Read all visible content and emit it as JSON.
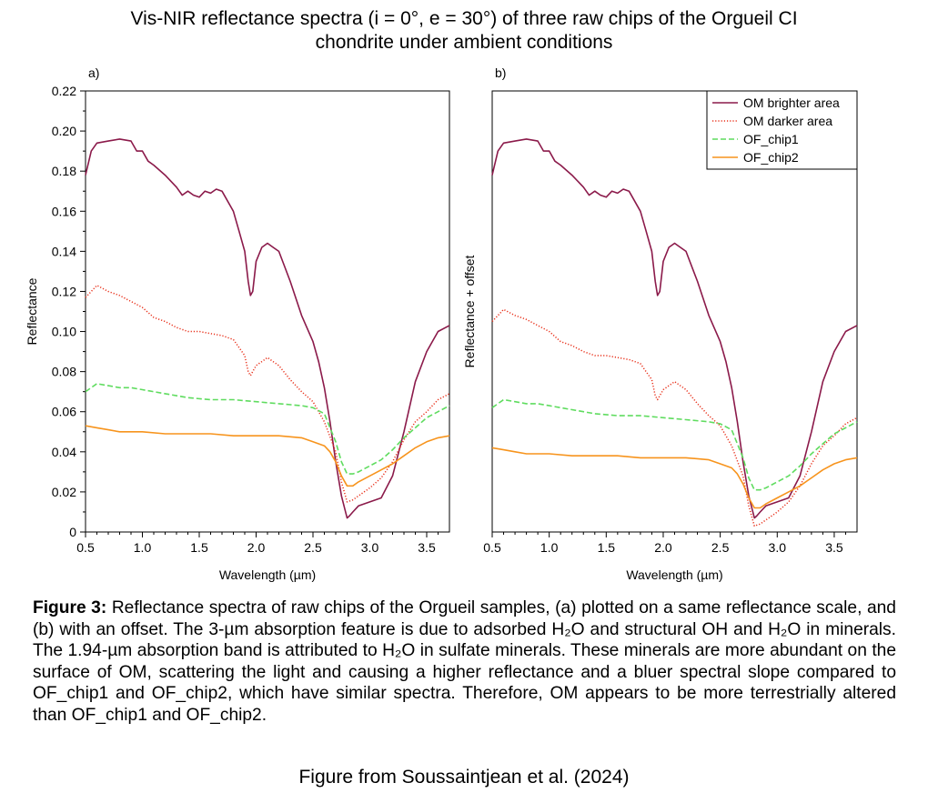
{
  "figure": {
    "title_line1": "Vis-NIR reflectance spectra (i = 0°, e = 30°) of three raw chips of the Orgueil CI",
    "title_line2": "chondrite under ambient conditions",
    "caption_label": "Figure 3:",
    "caption_text": "Reflectance spectra of raw chips of the Orgueil samples, (a) plotted on a same reflectance scale, and (b) with an offset. The 3-µm absorption feature is due to adsorbed H₂O and structural OH and H₂O in minerals. The 1.94-µm absorption band is attributed to H₂O in sulfate minerals. These minerals are more abundant on the surface of OM, scattering the light and causing a higher reflectance and a bluer spectral slope compared to OF_chip1 and OF_chip2, which have similar spectra. Therefore, OM appears to be more terrestrially altered than OF_chip1 and OF_chip2.",
    "credit": "Figure from Soussaintjean et al. (2024)"
  },
  "colors": {
    "om_bright": "#8b1a4a",
    "om_dark": "#e8301a",
    "of_chip1": "#5fdc5f",
    "of_chip2": "#f7941d"
  },
  "chart_data": [
    {
      "type": "line",
      "panel_label": "a)",
      "xlabel": "Wavelength (µm)",
      "ylabel": "Reflectance",
      "xlim": [
        0.5,
        3.7
      ],
      "ylim": [
        0,
        0.22
      ],
      "xticks": [
        0.5,
        1.0,
        1.5,
        2.0,
        2.5,
        3.0,
        3.5
      ],
      "xtick_labels": [
        "0.5",
        "1.0",
        "1.5",
        "2.0",
        "2.5",
        "3.0",
        "3.5"
      ],
      "yticks": [
        0,
        0.02,
        0.04,
        0.06,
        0.08,
        0.1,
        0.12,
        0.14,
        0.16,
        0.18,
        0.2,
        0.22
      ],
      "ytick_labels": [
        "0",
        "0.02",
        "0.04",
        "0.06",
        "0.08",
        "0.10",
        "0.12",
        "0.14",
        "0.16",
        "0.18",
        "0.20",
        "0.22"
      ],
      "legend": false,
      "series": [
        {
          "name": "OM brighter area",
          "style": "solid",
          "color_key": "om_bright",
          "x": [
            0.5,
            0.55,
            0.6,
            0.7,
            0.8,
            0.9,
            0.95,
            1.0,
            1.05,
            1.1,
            1.2,
            1.3,
            1.35,
            1.4,
            1.45,
            1.5,
            1.55,
            1.6,
            1.65,
            1.7,
            1.8,
            1.85,
            1.9,
            1.93,
            1.95,
            1.97,
            2.0,
            2.05,
            2.1,
            2.15,
            2.2,
            2.3,
            2.4,
            2.5,
            2.55,
            2.6,
            2.65,
            2.7,
            2.75,
            2.8,
            2.82,
            2.85,
            2.9,
            3.0,
            3.1,
            3.2,
            3.3,
            3.4,
            3.5,
            3.6,
            3.7
          ],
          "y": [
            0.178,
            0.19,
            0.194,
            0.195,
            0.196,
            0.195,
            0.19,
            0.19,
            0.185,
            0.183,
            0.178,
            0.172,
            0.168,
            0.17,
            0.168,
            0.167,
            0.17,
            0.169,
            0.171,
            0.17,
            0.16,
            0.15,
            0.14,
            0.125,
            0.118,
            0.12,
            0.135,
            0.142,
            0.144,
            0.142,
            0.14,
            0.125,
            0.108,
            0.095,
            0.085,
            0.072,
            0.055,
            0.035,
            0.018,
            0.007,
            0.008,
            0.01,
            0.013,
            0.015,
            0.017,
            0.028,
            0.05,
            0.075,
            0.09,
            0.1,
            0.103
          ]
        },
        {
          "name": "OM darker area",
          "style": "dotted",
          "color_key": "om_dark",
          "x": [
            0.5,
            0.55,
            0.6,
            0.7,
            0.8,
            0.9,
            1.0,
            1.1,
            1.2,
            1.3,
            1.4,
            1.5,
            1.6,
            1.7,
            1.8,
            1.9,
            1.93,
            1.95,
            2.0,
            2.05,
            2.1,
            2.15,
            2.2,
            2.3,
            2.4,
            2.5,
            2.6,
            2.7,
            2.75,
            2.8,
            2.85,
            2.9,
            3.0,
            3.1,
            3.2,
            3.3,
            3.4,
            3.5,
            3.6,
            3.7
          ],
          "y": [
            0.117,
            0.12,
            0.123,
            0.12,
            0.118,
            0.115,
            0.112,
            0.107,
            0.105,
            0.102,
            0.1,
            0.1,
            0.099,
            0.098,
            0.096,
            0.088,
            0.08,
            0.078,
            0.083,
            0.085,
            0.087,
            0.085,
            0.083,
            0.076,
            0.07,
            0.065,
            0.055,
            0.04,
            0.025,
            0.015,
            0.016,
            0.018,
            0.022,
            0.027,
            0.035,
            0.046,
            0.055,
            0.06,
            0.066,
            0.069
          ]
        },
        {
          "name": "OF_chip1",
          "style": "dashed",
          "color_key": "of_chip1",
          "x": [
            0.5,
            0.6,
            0.7,
            0.8,
            0.9,
            1.0,
            1.2,
            1.4,
            1.6,
            1.8,
            2.0,
            2.2,
            2.4,
            2.5,
            2.6,
            2.7,
            2.75,
            2.8,
            2.85,
            2.9,
            3.0,
            3.1,
            3.2,
            3.3,
            3.4,
            3.5,
            3.6,
            3.7
          ],
          "y": [
            0.07,
            0.074,
            0.073,
            0.072,
            0.072,
            0.071,
            0.069,
            0.067,
            0.066,
            0.066,
            0.065,
            0.064,
            0.063,
            0.062,
            0.059,
            0.045,
            0.035,
            0.029,
            0.029,
            0.03,
            0.033,
            0.036,
            0.041,
            0.047,
            0.052,
            0.057,
            0.06,
            0.063
          ]
        },
        {
          "name": "OF_chip2",
          "style": "solid",
          "color_key": "of_chip2",
          "x": [
            0.5,
            0.6,
            0.7,
            0.8,
            1.0,
            1.2,
            1.4,
            1.6,
            1.8,
            2.0,
            2.2,
            2.4,
            2.5,
            2.6,
            2.65,
            2.7,
            2.75,
            2.8,
            2.85,
            2.9,
            3.0,
            3.1,
            3.2,
            3.3,
            3.4,
            3.5,
            3.6,
            3.7
          ],
          "y": [
            0.053,
            0.052,
            0.051,
            0.05,
            0.05,
            0.049,
            0.049,
            0.049,
            0.048,
            0.048,
            0.048,
            0.047,
            0.045,
            0.043,
            0.04,
            0.035,
            0.028,
            0.023,
            0.023,
            0.025,
            0.028,
            0.031,
            0.034,
            0.038,
            0.042,
            0.045,
            0.047,
            0.048
          ]
        }
      ]
    },
    {
      "type": "line",
      "panel_label": "b)",
      "xlabel": "Wavelength (µm)",
      "ylabel": "Reflectance + offset",
      "xlim": [
        0.5,
        3.7
      ],
      "xticks": [
        0.5,
        1.0,
        1.5,
        2.0,
        2.5,
        3.0,
        3.5
      ],
      "xtick_labels": [
        "0.5",
        "1.0",
        "1.5",
        "2.0",
        "2.5",
        "3.0",
        "3.5"
      ],
      "y_axis_unlabeled": true,
      "legend": true,
      "legend_position": "top-right",
      "series": [
        {
          "name": "OM brighter area",
          "style": "solid",
          "color_key": "om_bright",
          "x": [
            0.5,
            0.55,
            0.6,
            0.7,
            0.8,
            0.9,
            0.95,
            1.0,
            1.05,
            1.1,
            1.2,
            1.3,
            1.35,
            1.4,
            1.45,
            1.5,
            1.55,
            1.6,
            1.65,
            1.7,
            1.8,
            1.85,
            1.9,
            1.93,
            1.95,
            1.97,
            2.0,
            2.05,
            2.1,
            2.15,
            2.2,
            2.3,
            2.4,
            2.5,
            2.55,
            2.6,
            2.65,
            2.7,
            2.75,
            2.8,
            2.82,
            2.85,
            2.9,
            3.0,
            3.1,
            3.2,
            3.3,
            3.4,
            3.5,
            3.6,
            3.7
          ],
          "y": [
            0.178,
            0.19,
            0.194,
            0.195,
            0.196,
            0.195,
            0.19,
            0.19,
            0.185,
            0.183,
            0.178,
            0.172,
            0.168,
            0.17,
            0.168,
            0.167,
            0.17,
            0.169,
            0.171,
            0.17,
            0.16,
            0.15,
            0.14,
            0.125,
            0.118,
            0.12,
            0.135,
            0.142,
            0.144,
            0.142,
            0.14,
            0.125,
            0.108,
            0.095,
            0.085,
            0.072,
            0.055,
            0.035,
            0.018,
            0.007,
            0.008,
            0.01,
            0.013,
            0.015,
            0.017,
            0.028,
            0.05,
            0.075,
            0.09,
            0.1,
            0.103
          ]
        },
        {
          "name": "OM darker area",
          "style": "dotted",
          "color_key": "om_dark",
          "x": [
            0.5,
            0.55,
            0.6,
            0.7,
            0.8,
            0.9,
            1.0,
            1.1,
            1.2,
            1.3,
            1.4,
            1.5,
            1.6,
            1.7,
            1.8,
            1.9,
            1.93,
            1.95,
            2.0,
            2.05,
            2.1,
            2.15,
            2.2,
            2.3,
            2.4,
            2.5,
            2.6,
            2.7,
            2.75,
            2.8,
            2.85,
            2.9,
            3.0,
            3.1,
            3.2,
            3.3,
            3.4,
            3.5,
            3.6,
            3.7
          ],
          "y": [
            0.117,
            0.12,
            0.123,
            0.12,
            0.118,
            0.115,
            0.112,
            0.107,
            0.105,
            0.102,
            0.1,
            0.1,
            0.099,
            0.098,
            0.096,
            0.088,
            0.08,
            0.078,
            0.083,
            0.085,
            0.087,
            0.085,
            0.083,
            0.076,
            0.07,
            0.065,
            0.055,
            0.04,
            0.025,
            0.015,
            0.016,
            0.018,
            0.022,
            0.027,
            0.035,
            0.046,
            0.055,
            0.06,
            0.066,
            0.069
          ]
        },
        {
          "name": "OF_chip1",
          "style": "dashed",
          "color_key": "of_chip1",
          "x": [
            0.5,
            0.6,
            0.7,
            0.8,
            0.9,
            1.0,
            1.2,
            1.4,
            1.6,
            1.8,
            2.0,
            2.2,
            2.4,
            2.5,
            2.6,
            2.7,
            2.75,
            2.8,
            2.85,
            2.9,
            3.0,
            3.1,
            3.2,
            3.3,
            3.4,
            3.5,
            3.6,
            3.7
          ],
          "y": [
            0.07,
            0.074,
            0.073,
            0.072,
            0.072,
            0.071,
            0.069,
            0.067,
            0.066,
            0.066,
            0.065,
            0.064,
            0.063,
            0.062,
            0.059,
            0.045,
            0.035,
            0.029,
            0.029,
            0.03,
            0.033,
            0.036,
            0.041,
            0.047,
            0.052,
            0.057,
            0.06,
            0.063
          ]
        },
        {
          "name": "OF_chip2",
          "style": "solid",
          "color_key": "of_chip2",
          "x": [
            0.5,
            0.6,
            0.7,
            0.8,
            1.0,
            1.2,
            1.4,
            1.6,
            1.8,
            2.0,
            2.2,
            2.4,
            2.5,
            2.6,
            2.65,
            2.7,
            2.75,
            2.8,
            2.85,
            2.9,
            3.0,
            3.1,
            3.2,
            3.3,
            3.4,
            3.5,
            3.6,
            3.7
          ],
          "y": [
            0.053,
            0.052,
            0.051,
            0.05,
            0.05,
            0.049,
            0.049,
            0.049,
            0.048,
            0.048,
            0.048,
            0.047,
            0.045,
            0.043,
            0.04,
            0.035,
            0.028,
            0.023,
            0.023,
            0.025,
            0.028,
            0.031,
            0.034,
            0.038,
            0.042,
            0.045,
            0.047,
            0.048
          ]
        }
      ]
    }
  ]
}
